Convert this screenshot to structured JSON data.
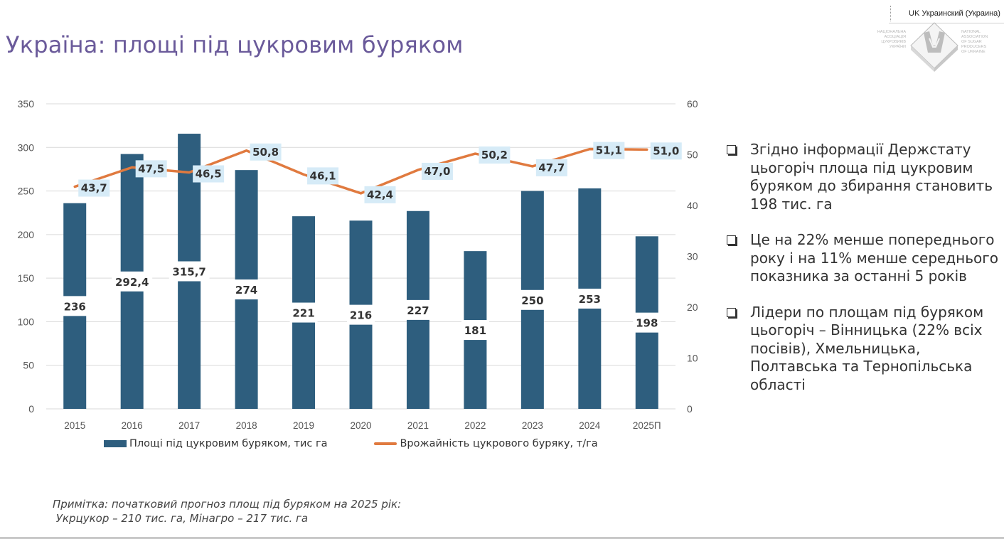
{
  "header": {
    "title": "Україна: площі під цукровим буряком",
    "language_indicator": "UK Украинский (Украина)"
  },
  "logo": {
    "left_text": [
      "НАЦІОНАЛЬНА",
      "АСОЦІАЦІЯ",
      "ЦУКРОВИКІВ",
      "УКРАЇНИ"
    ],
    "right_text": [
      "NATIONAL",
      "ASSOCIATION",
      "OF SUGAR",
      "PRODUCERS",
      "OF UKRAINE"
    ]
  },
  "chart_data": {
    "type": "bar+line",
    "categories": [
      "2015",
      "2016",
      "2017",
      "2018",
      "2019",
      "2020",
      "2021",
      "2022",
      "2023",
      "2024",
      "2025П"
    ],
    "series": [
      {
        "name": "Площі під цукровим буряком, тис га",
        "type": "bar",
        "axis": "left",
        "color": "#2e5e7e",
        "values": [
          236,
          292.4,
          315.7,
          274,
          221,
          216,
          227,
          181,
          250,
          253,
          198
        ],
        "labels": [
          "236",
          "292,4",
          "315,7",
          "274",
          "221",
          "216",
          "227",
          "181",
          "250",
          "253",
          "198"
        ]
      },
      {
        "name": "Врожайність цукрового буряку, т/га",
        "type": "line",
        "axis": "right",
        "color": "#e07a3f",
        "values": [
          43.7,
          47.5,
          46.5,
          50.8,
          46.1,
          42.4,
          47.0,
          50.2,
          47.7,
          51.1,
          51.0
        ],
        "labels": [
          "43,7",
          "47,5",
          "46,5",
          "50,8",
          "46,1",
          "42,4",
          "47,0",
          "50,2",
          "47,7",
          "51,1",
          "51,0"
        ]
      }
    ],
    "y_left": {
      "range": [
        0,
        350
      ],
      "ticks": [
        "0",
        "50",
        "100",
        "150",
        "200",
        "250",
        "300",
        "350"
      ]
    },
    "y_right": {
      "range": [
        0,
        60
      ],
      "ticks": [
        "0",
        "10",
        "20",
        "30",
        "40",
        "50",
        "60"
      ]
    },
    "grid": true,
    "legend_position": "bottom",
    "title": "",
    "xlabel": "",
    "ylabel": ""
  },
  "bullets": [
    "Згідно інформації Держстату цьогоріч площа під цукровим буряком до збирання становить 198 тис. га",
    "Це на 22% менше попереднього року і на 11% менше середнього показника за останні 5 років",
    "Лідери по площам під буряком цьогоріч – Вінницька (22% всіх посівів), Хмельницька, Полтавська та Тернопільська області"
  ],
  "note": {
    "line1": "Примітка: початковий прогноз площ під буряком на 2025 рік:",
    "line2": " Укрцукор – 210 тис. га, Мінагро – 217 тис. га"
  },
  "colors": {
    "title": "#6a5a9a",
    "bar": "#2e5e7e",
    "line": "#e07a3f",
    "line_label_bg": "#d6ebf7"
  }
}
